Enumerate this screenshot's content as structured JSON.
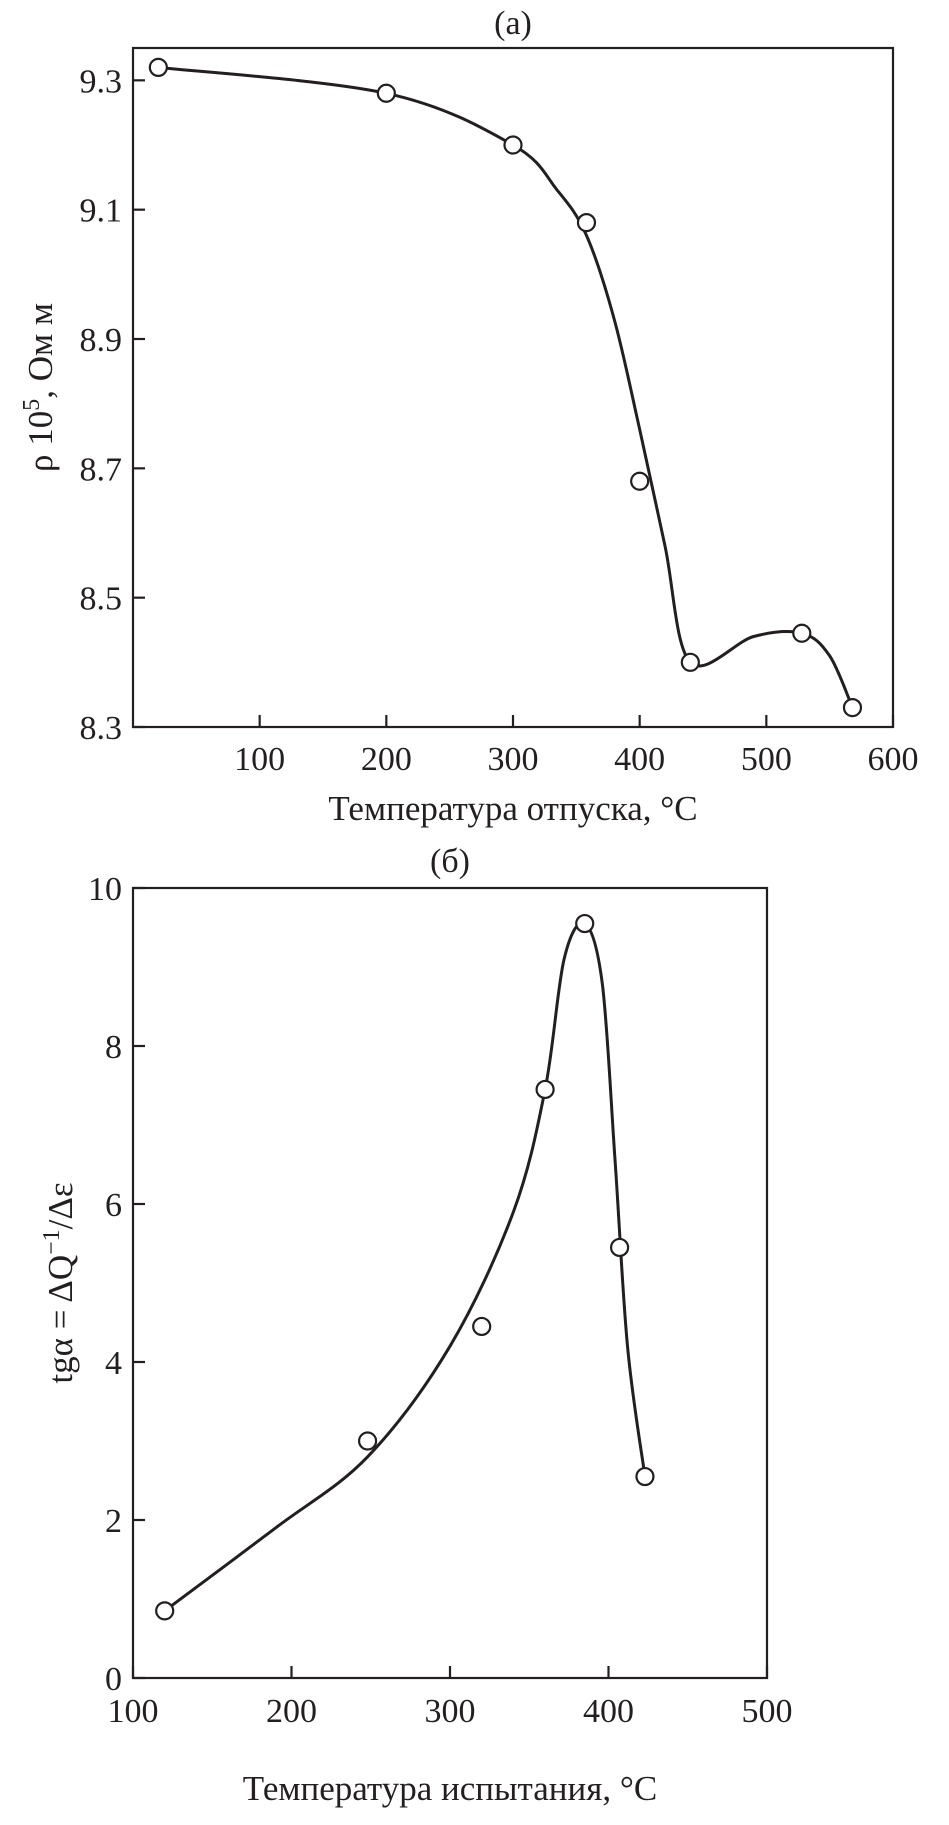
{
  "chart_data": [
    {
      "type": "line",
      "panel_label": "(а)",
      "xlabel": "Температура отпуска, °С",
      "ylabel": {
        "base": "ρ 10",
        "exponent": "5",
        "suffix": ", Ом м"
      },
      "xlim": [
        0,
        600
      ],
      "ylim": [
        8.3,
        9.35
      ],
      "x_ticks": [
        100,
        200,
        300,
        400,
        500,
        600
      ],
      "x_tick_labels": [
        "100",
        "200",
        "300",
        "400",
        "500",
        "600"
      ],
      "y_ticks": [
        8.3,
        8.5,
        8.7,
        8.9,
        9.1,
        9.3
      ],
      "y_tick_labels": [
        "8.3",
        "8.5",
        "8.7",
        "8.9",
        "9.1",
        "9.3"
      ],
      "grid": false,
      "legend": "none",
      "series": [
        {
          "points": [
            {
              "x": 20,
              "y": 9.32
            },
            {
              "x": 200,
              "y": 9.28
            },
            {
              "x": 300,
              "y": 9.2
            },
            {
              "x": 358,
              "y": 9.08
            },
            {
              "x": 400,
              "y": 8.68
            },
            {
              "x": 440,
              "y": 8.4
            },
            {
              "x": 528,
              "y": 8.445
            },
            {
              "x": 568,
              "y": 8.33
            }
          ],
          "curve": [
            {
              "x": 20,
              "y": 9.32
            },
            {
              "x": 200,
              "y": 9.28
            },
            {
              "x": 300,
              "y": 9.2
            },
            {
              "x": 335,
              "y": 9.13
            },
            {
              "x": 358,
              "y": 9.06
            },
            {
              "x": 380,
              "y": 8.93
            },
            {
              "x": 400,
              "y": 8.76
            },
            {
              "x": 420,
              "y": 8.58
            },
            {
              "x": 440,
              "y": 8.4
            },
            {
              "x": 490,
              "y": 8.44
            },
            {
              "x": 528,
              "y": 8.445
            },
            {
              "x": 550,
              "y": 8.41
            },
            {
              "x": 568,
              "y": 8.33
            }
          ]
        }
      ]
    },
    {
      "type": "line",
      "panel_label": "(б)",
      "xlabel": "Температура испытания, °С",
      "ylabel": {
        "prefix": "tgα = ΔQ",
        "exponent": "−1",
        "suffix": "/Δε"
      },
      "xlim": [
        100,
        500
      ],
      "ylim": [
        0,
        10
      ],
      "x_ticks": [
        100,
        200,
        300,
        400,
        500
      ],
      "x_tick_labels": [
        "100",
        "200",
        "300",
        "400",
        "500"
      ],
      "y_ticks": [
        0,
        2,
        4,
        6,
        8,
        10
      ],
      "y_tick_labels": [
        "0",
        "2",
        "4",
        "6",
        "8",
        "10"
      ],
      "grid": false,
      "legend": "none",
      "series": [
        {
          "points": [
            {
              "x": 120,
              "y": 0.85
            },
            {
              "x": 248,
              "y": 3.0
            },
            {
              "x": 320,
              "y": 4.45
            },
            {
              "x": 360,
              "y": 7.45
            },
            {
              "x": 385,
              "y": 9.55
            },
            {
              "x": 407,
              "y": 5.45
            },
            {
              "x": 423,
              "y": 2.55
            }
          ],
          "curve": [
            {
              "x": 120,
              "y": 0.85
            },
            {
              "x": 190,
              "y": 1.9
            },
            {
              "x": 248,
              "y": 2.8
            },
            {
              "x": 300,
              "y": 4.2
            },
            {
              "x": 340,
              "y": 5.9
            },
            {
              "x": 360,
              "y": 7.45
            },
            {
              "x": 372,
              "y": 9.1
            },
            {
              "x": 385,
              "y": 9.55
            },
            {
              "x": 396,
              "y": 8.8
            },
            {
              "x": 404,
              "y": 6.6
            },
            {
              "x": 412,
              "y": 4.2
            },
            {
              "x": 423,
              "y": 2.55
            }
          ]
        }
      ]
    }
  ]
}
